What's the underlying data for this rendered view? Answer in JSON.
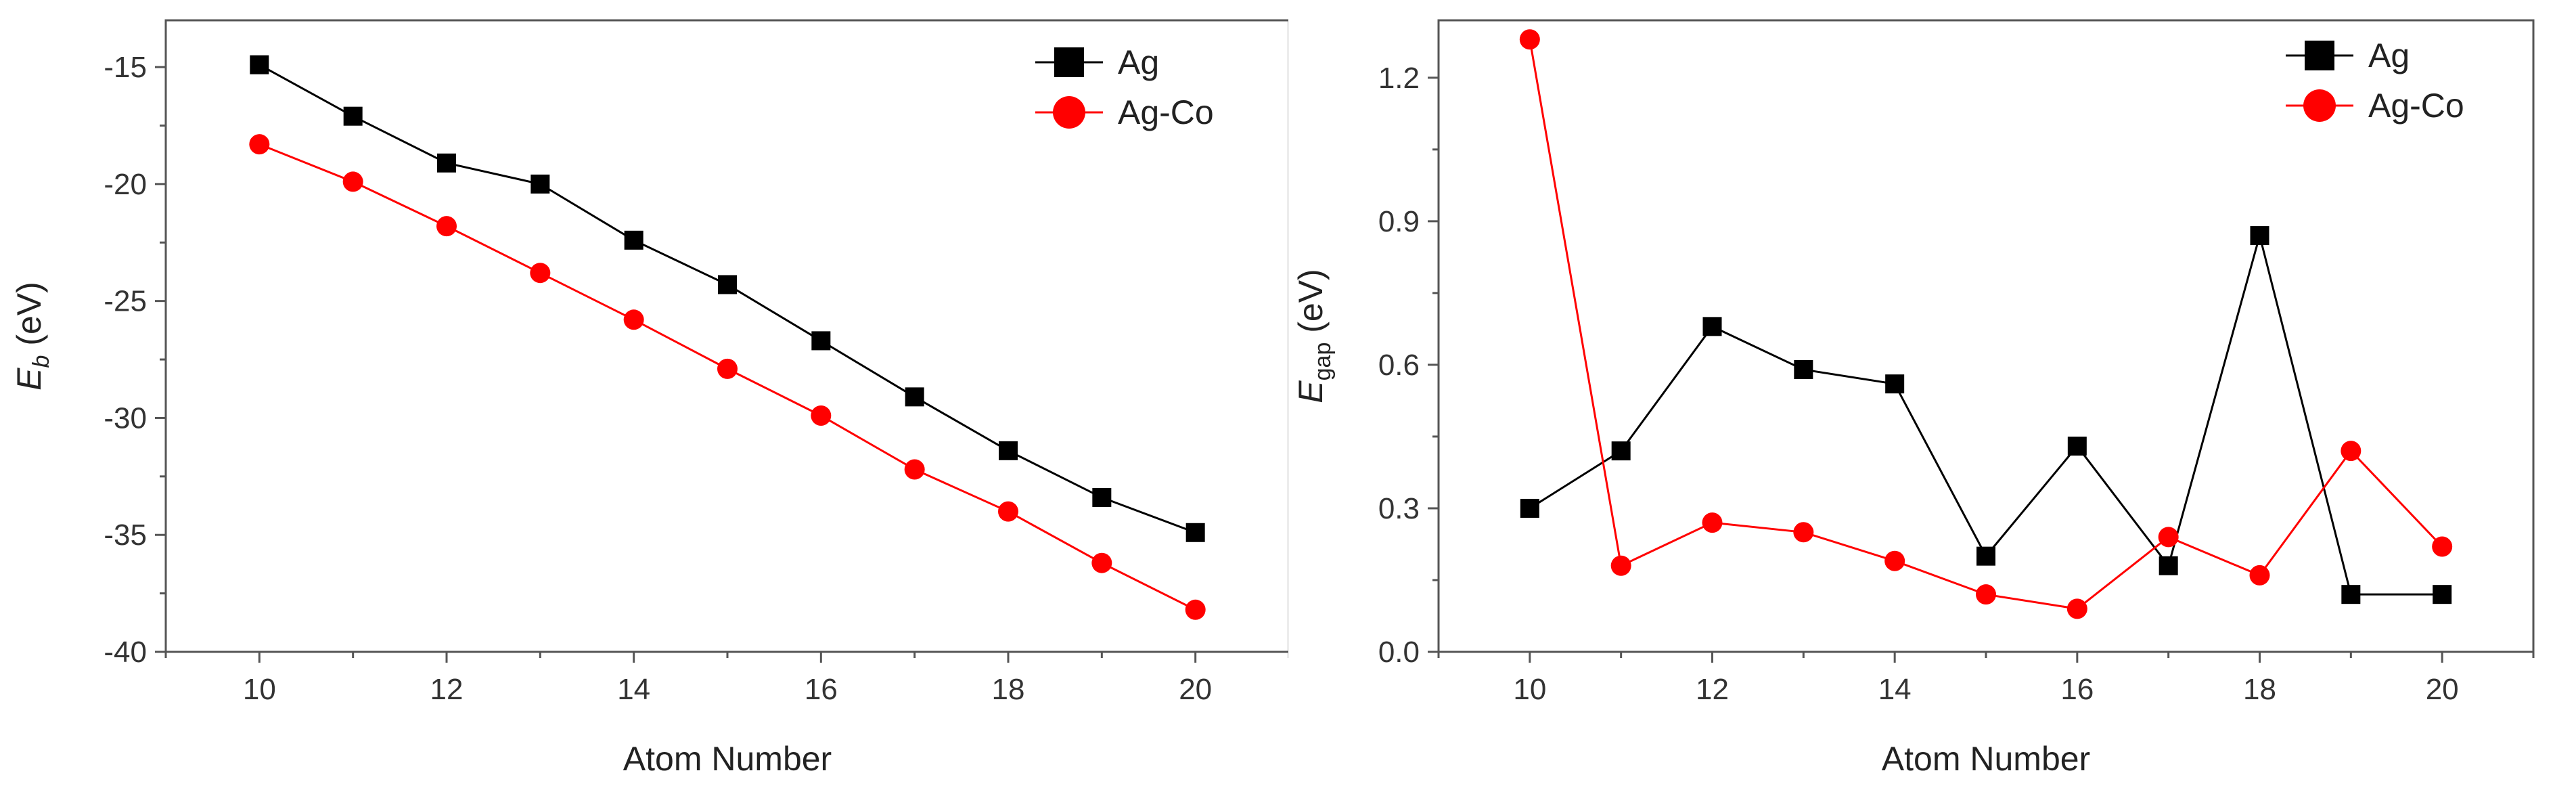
{
  "chart_data": [
    {
      "type": "line",
      "xlabel": "Atom Number",
      "ylabel_main": "E",
      "ylabel_sub": "b",
      "ylabel_unit": " (eV)",
      "xlim": [
        9,
        21
      ],
      "ylim": [
        -40,
        -13
      ],
      "xticks": [
        10,
        12,
        14,
        16,
        18,
        20
      ],
      "yticks": [
        -40,
        -35,
        -30,
        -25,
        -20,
        -15
      ],
      "x": [
        10,
        11,
        12,
        13,
        14,
        15,
        16,
        17,
        18,
        19,
        20
      ],
      "series": [
        {
          "name": "Ag",
          "color": "#000000",
          "marker": "square",
          "values": [
            -14.9,
            -17.1,
            -19.1,
            -20.0,
            -22.4,
            -24.3,
            -26.7,
            -29.1,
            -31.4,
            -33.4,
            -34.9
          ]
        },
        {
          "name": "Ag-Co",
          "color": "#ff0000",
          "marker": "circle",
          "values": [
            -18.3,
            -19.9,
            -21.8,
            -23.8,
            -25.8,
            -27.9,
            -29.9,
            -32.2,
            -34.0,
            -36.2,
            -38.2
          ]
        }
      ]
    },
    {
      "type": "line",
      "xlabel": "Atom Number",
      "ylabel_main": "E",
      "ylabel_sub": "gap",
      "ylabel_unit": " (eV)",
      "xlim": [
        9,
        21
      ],
      "ylim": [
        0,
        1.32
      ],
      "xticks": [
        10,
        12,
        14,
        16,
        18,
        20
      ],
      "yticks": [
        0.0,
        0.3,
        0.6,
        0.9,
        1.2
      ],
      "ytick_decimals": 1,
      "x": [
        10,
        11,
        12,
        13,
        14,
        15,
        16,
        17,
        18,
        19,
        20
      ],
      "series": [
        {
          "name": "Ag",
          "color": "#000000",
          "marker": "square",
          "values": [
            0.3,
            0.42,
            0.68,
            0.59,
            0.56,
            0.2,
            0.43,
            0.18,
            0.87,
            0.12,
            0.12
          ]
        },
        {
          "name": "Ag-Co",
          "color": "#ff0000",
          "marker": "circle",
          "values": [
            1.28,
            0.18,
            0.27,
            0.25,
            0.19,
            0.12,
            0.09,
            0.24,
            0.16,
            0.42,
            0.22
          ]
        }
      ]
    }
  ]
}
